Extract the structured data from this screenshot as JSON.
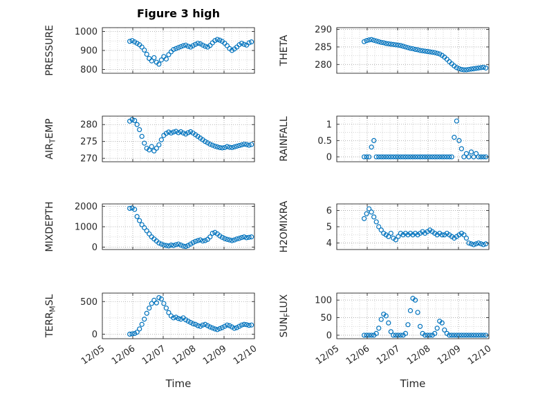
{
  "figure": {
    "title": "Figure 3 high",
    "xlabel": "Time",
    "marker_color": "#0072BD",
    "axis_color": "#262626",
    "grid_major_color": "#9e9e9e",
    "grid_minor_color": "#cccccc",
    "background": "#ffffff",
    "xlim": [
      0,
      5
    ],
    "xticks": [
      0,
      1,
      2,
      3,
      4,
      5
    ],
    "xticklabels": [
      "12/05",
      "12/06",
      "12/07",
      "12/08",
      "12/09",
      "12/10"
    ],
    "x_days": [
      0.9,
      0.98,
      1.06,
      1.14,
      1.22,
      1.3,
      1.38,
      1.46,
      1.54,
      1.62,
      1.7,
      1.78,
      1.86,
      1.94,
      2.02,
      2.1,
      2.18,
      2.26,
      2.34,
      2.42,
      2.5,
      2.58,
      2.66,
      2.74,
      2.82,
      2.9,
      2.98,
      3.06,
      3.14,
      3.22,
      3.3,
      3.38,
      3.46,
      3.54,
      3.62,
      3.7,
      3.78,
      3.86,
      3.94,
      4.02,
      4.1,
      4.18,
      4.26,
      4.34,
      4.42,
      4.5,
      4.58,
      4.66,
      4.74,
      4.82,
      4.9
    ]
  },
  "chart_data": [
    {
      "type": "scatter",
      "ylabel": "PRESSURE",
      "row": 0,
      "col": 0,
      "ylim": [
        780,
        1020
      ],
      "yticks": [
        800,
        900,
        1000
      ],
      "values": [
        948,
        952,
        945,
        938,
        930,
        918,
        902,
        880,
        858,
        845,
        862,
        838,
        828,
        850,
        868,
        855,
        878,
        893,
        905,
        910,
        915,
        920,
        925,
        928,
        922,
        918,
        925,
        932,
        938,
        935,
        928,
        922,
        918,
        926,
        940,
        952,
        958,
        954,
        948,
        938,
        925,
        910,
        900,
        908,
        918,
        930,
        938,
        932,
        928,
        940,
        945
      ]
    },
    {
      "type": "scatter",
      "ylabel": "THETA",
      "row": 0,
      "col": 1,
      "ylim": [
        277.5,
        290.5
      ],
      "yticks": [
        280,
        285,
        290
      ],
      "values": [
        286.5,
        286.8,
        287.0,
        287.1,
        286.9,
        286.7,
        286.5,
        286.3,
        286.2,
        286.0,
        285.9,
        285.8,
        285.7,
        285.6,
        285.5,
        285.4,
        285.2,
        285.0,
        284.8,
        284.6,
        284.5,
        284.3,
        284.2,
        284.0,
        283.9,
        283.8,
        283.7,
        283.6,
        283.5,
        283.4,
        283.2,
        283.0,
        282.6,
        282.1,
        281.5,
        280.8,
        280.2,
        279.6,
        279.1,
        278.8,
        278.6,
        278.5,
        278.5,
        278.6,
        278.7,
        278.8,
        278.9,
        279.0,
        279.1,
        279.2,
        279.0
      ]
    },
    {
      "type": "scatter",
      "ylabel": "AIR_TEMP",
      "row": 1,
      "col": 0,
      "ylim": [
        269,
        282.5
      ],
      "yticks": [
        270,
        275,
        280
      ],
      "values": [
        281.0,
        281.5,
        281.2,
        280.0,
        278.5,
        276.5,
        274.5,
        273.0,
        272.5,
        273.5,
        272.2,
        273.0,
        274.0,
        275.5,
        276.8,
        277.4,
        277.8,
        277.5,
        277.8,
        278.0,
        277.6,
        277.9,
        277.5,
        277.2,
        277.6,
        277.9,
        277.5,
        277.0,
        276.5,
        276.0,
        275.5,
        275.0,
        274.6,
        274.2,
        273.9,
        273.6,
        273.4,
        273.2,
        273.1,
        273.2,
        273.5,
        273.3,
        273.2,
        273.4,
        273.6,
        273.8,
        274.0,
        274.2,
        274.1,
        273.9,
        274.1
      ]
    },
    {
      "type": "scatter",
      "ylabel": "RAINFALL",
      "row": 1,
      "col": 1,
      "ylim": [
        -0.15,
        1.25
      ],
      "yticks": [
        0,
        0.5,
        1
      ],
      "values": [
        0,
        0,
        0,
        0.3,
        0.5,
        0,
        0,
        0,
        0,
        0,
        0,
        0,
        0,
        0,
        0,
        0,
        0,
        0,
        0,
        0,
        0,
        0,
        0,
        0,
        0,
        0,
        0,
        0,
        0,
        0,
        0,
        0,
        0,
        0,
        0,
        0,
        0,
        0.6,
        1.1,
        0.5,
        0.25,
        0,
        0.1,
        0,
        0.15,
        0,
        0.1,
        0,
        0,
        0,
        0
      ]
    },
    {
      "type": "scatter",
      "ylabel": "MIXDEPTH",
      "row": 2,
      "col": 0,
      "ylim": [
        -120,
        2120
      ],
      "yticks": [
        0,
        1000,
        2000
      ],
      "values": [
        1900,
        1920,
        1850,
        1500,
        1300,
        1100,
        950,
        800,
        650,
        500,
        400,
        300,
        200,
        150,
        100,
        80,
        60,
        100,
        80,
        120,
        150,
        100,
        50,
        30,
        80,
        150,
        220,
        280,
        320,
        350,
        300,
        320,
        380,
        500,
        680,
        720,
        650,
        550,
        480,
        420,
        380,
        350,
        320,
        350,
        400,
        430,
        470,
        500,
        460,
        480,
        500
      ]
    },
    {
      "type": "scatter",
      "ylabel": "H2OMIXRA",
      "row": 2,
      "col": 1,
      "ylim": [
        3.6,
        6.4
      ],
      "yticks": [
        4,
        5,
        6
      ],
      "values": [
        5.5,
        5.8,
        6.1,
        5.9,
        5.6,
        5.3,
        5.0,
        4.8,
        4.6,
        4.5,
        4.4,
        4.6,
        4.3,
        4.2,
        4.4,
        4.6,
        4.5,
        4.6,
        4.5,
        4.6,
        4.5,
        4.6,
        4.5,
        4.6,
        4.7,
        4.6,
        4.7,
        4.8,
        4.7,
        4.6,
        4.5,
        4.6,
        4.5,
        4.5,
        4.6,
        4.5,
        4.4,
        4.3,
        4.4,
        4.5,
        4.6,
        4.5,
        4.3,
        4.0,
        3.95,
        3.9,
        3.95,
        4.0,
        3.95,
        3.9,
        3.95
      ]
    },
    {
      "type": "scatter",
      "ylabel": "TERR_MSL",
      "row": 3,
      "col": 0,
      "ylim": [
        -70,
        630
      ],
      "yticks": [
        0,
        500
      ],
      "values": [
        0,
        5,
        10,
        30,
        80,
        150,
        230,
        320,
        400,
        470,
        520,
        480,
        560,
        540,
        470,
        400,
        330,
        280,
        250,
        260,
        240,
        230,
        250,
        220,
        200,
        180,
        160,
        150,
        130,
        120,
        140,
        150,
        130,
        110,
        95,
        80,
        70,
        85,
        100,
        120,
        140,
        130,
        110,
        90,
        100,
        120,
        140,
        150,
        145,
        135,
        140
      ]
    },
    {
      "type": "scatter",
      "ylabel": "SUN_FLUX",
      "row": 3,
      "col": 1,
      "ylim": [
        -10,
        120
      ],
      "yticks": [
        0,
        50,
        100
      ],
      "values": [
        0,
        0,
        0,
        0,
        0,
        5,
        20,
        45,
        60,
        55,
        35,
        10,
        0,
        0,
        0,
        0,
        0,
        5,
        30,
        70,
        105,
        100,
        65,
        25,
        5,
        0,
        0,
        0,
        0,
        5,
        20,
        40,
        35,
        15,
        5,
        0,
        0,
        0,
        0,
        0,
        0,
        0,
        0,
        0,
        0,
        0,
        0,
        0,
        0,
        0,
        0
      ]
    }
  ]
}
